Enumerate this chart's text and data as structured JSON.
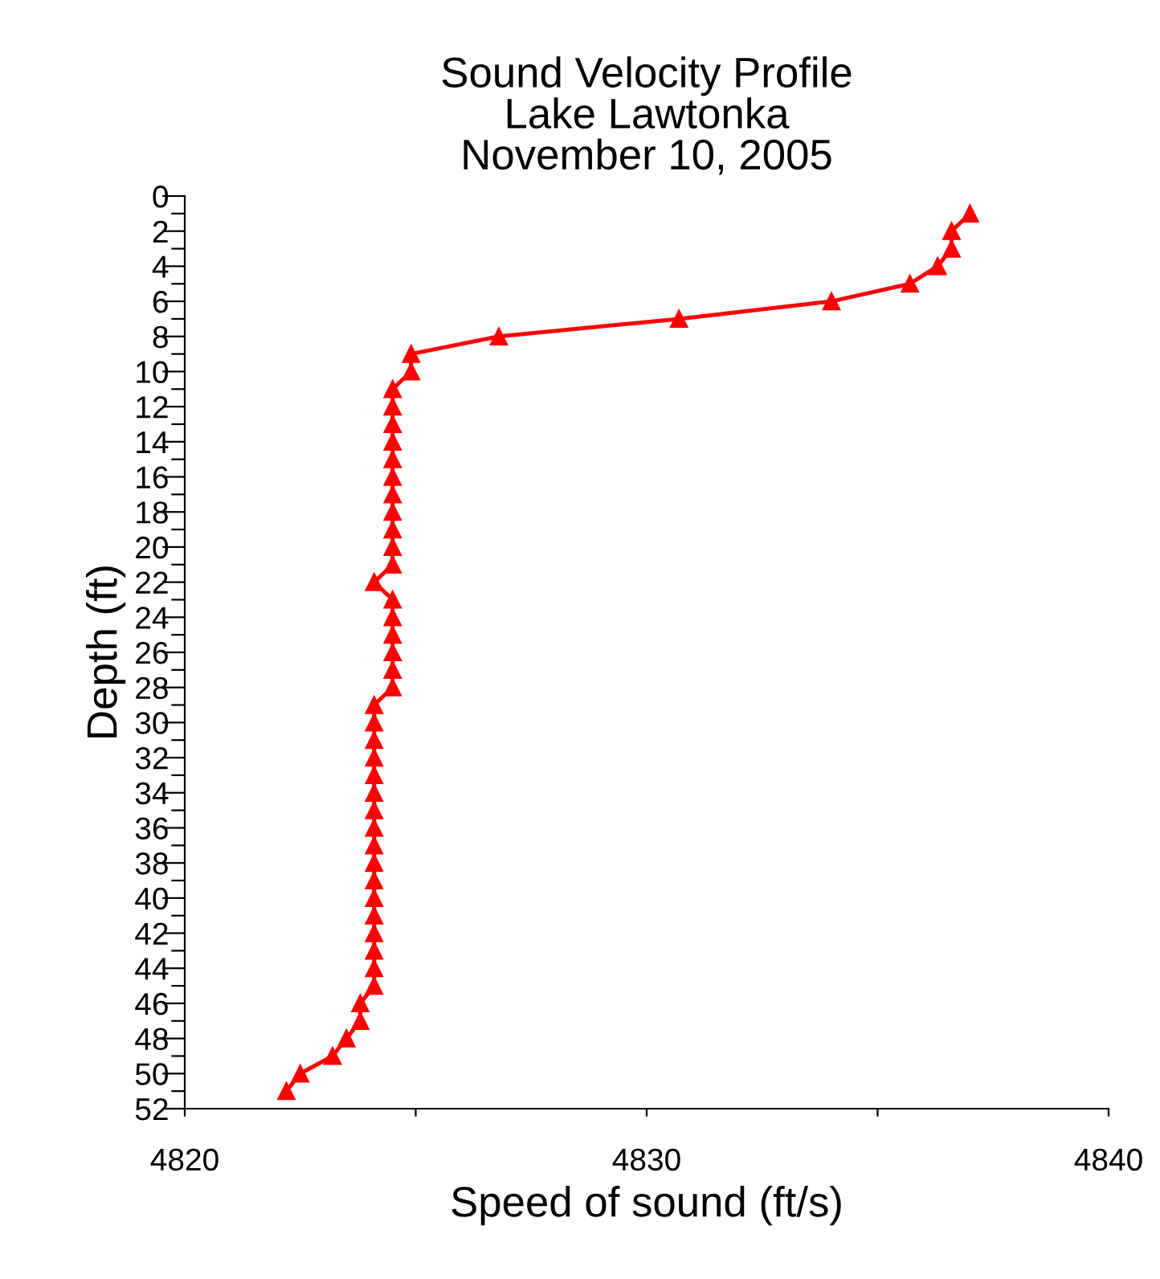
{
  "chart_data": {
    "type": "line",
    "title": "Sound Velocity Profile\nLake Lawtonka\nNovember 10, 2005",
    "xlabel": "Speed of sound (ft/s)",
    "ylabel": "Depth (ft)",
    "marker": "triangle",
    "line_style": "solid",
    "grid": false,
    "legend": false,
    "xlim": [
      4820,
      4840
    ],
    "xticks": [
      4820,
      {
        "value": 4825,
        "label": null
      },
      4830,
      {
        "value": 4835,
        "label": null
      },
      4840
    ],
    "ylim": [
      52,
      0
    ],
    "yticks": [
      0,
      {
        "value": 1,
        "label": null
      },
      2,
      {
        "value": 3,
        "label": null
      },
      4,
      {
        "value": 5,
        "label": null
      },
      6,
      {
        "value": 7,
        "label": null
      },
      8,
      {
        "value": 9,
        "label": null
      },
      10,
      {
        "value": 11,
        "label": null
      },
      12,
      {
        "value": 13,
        "label": null
      },
      14,
      {
        "value": 15,
        "label": null
      },
      16,
      {
        "value": 17,
        "label": null
      },
      18,
      {
        "value": 19,
        "label": null
      },
      20,
      {
        "value": 21,
        "label": null
      },
      22,
      {
        "value": 23,
        "label": null
      },
      24,
      {
        "value": 25,
        "label": null
      },
      26,
      {
        "value": 27,
        "label": null
      },
      28,
      {
        "value": 29,
        "label": null
      },
      30,
      {
        "value": 31,
        "label": null
      },
      32,
      {
        "value": 33,
        "label": null
      },
      34,
      {
        "value": 35,
        "label": null
      },
      36,
      {
        "value": 37,
        "label": null
      },
      38,
      {
        "value": 39,
        "label": null
      },
      40,
      {
        "value": 41,
        "label": null
      },
      42,
      {
        "value": 43,
        "label": null
      },
      44,
      {
        "value": 45,
        "label": null
      },
      46,
      {
        "value": 47,
        "label": null
      },
      48,
      {
        "value": 49,
        "label": null
      },
      50,
      {
        "value": 51,
        "label": null
      },
      52
    ],
    "series": [
      {
        "color": "#ff0000",
        "x": [
          4837.0,
          4836.6,
          4836.6,
          4836.3,
          4835.7,
          4834.0,
          4830.7,
          4826.8,
          4824.9,
          4824.9,
          4824.5,
          4824.5,
          4824.5,
          4824.5,
          4824.5,
          4824.5,
          4824.5,
          4824.5,
          4824.5,
          4824.5,
          4824.5,
          4824.1,
          4824.5,
          4824.5,
          4824.5,
          4824.5,
          4824.5,
          4824.5,
          4824.1,
          4824.1,
          4824.1,
          4824.1,
          4824.1,
          4824.1,
          4824.1,
          4824.1,
          4824.1,
          4824.1,
          4824.1,
          4824.1,
          4824.1,
          4824.1,
          4824.1,
          4824.1,
          4824.1,
          4823.8,
          4823.8,
          4823.5,
          4823.2,
          4822.5,
          4822.2
        ],
        "values": [
          1,
          2,
          3,
          4,
          5,
          6,
          7,
          8,
          9,
          10,
          11,
          12,
          13,
          14,
          15,
          16,
          17,
          18,
          19,
          20,
          21,
          22,
          23,
          24,
          25,
          26,
          27,
          28,
          29,
          30,
          31,
          32,
          33,
          34,
          35,
          36,
          37,
          38,
          39,
          40,
          41,
          42,
          43,
          44,
          45,
          46,
          47,
          48,
          49,
          50,
          51
        ]
      }
    ]
  }
}
